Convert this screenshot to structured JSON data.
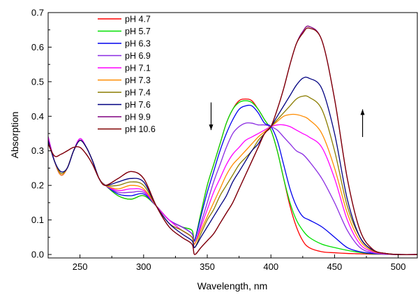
{
  "chart_data": {
    "type": "line",
    "title": "",
    "xlabel": "Wavelength, nm",
    "ylabel": "Absorption",
    "xlim": [
      225,
      515
    ],
    "ylim": [
      -0.01,
      0.7
    ],
    "xticks": [
      250,
      300,
      350,
      400,
      450,
      500
    ],
    "yticks": [
      0.0,
      0.1,
      0.2,
      0.3,
      0.4,
      0.5,
      0.6,
      0.7
    ],
    "grid": false,
    "legend_position": "top-left",
    "annotations": [
      {
        "type": "arrow",
        "direction": "down",
        "x": 353,
        "y_from": 0.44,
        "y_to": 0.36
      },
      {
        "type": "arrow",
        "direction": "up",
        "x": 472,
        "y_from": 0.34,
        "y_to": 0.42
      }
    ],
    "series": [
      {
        "name": "pH 4.7",
        "color": "#ff0000",
        "x": [
          225,
          230,
          235,
          240,
          245,
          250,
          255,
          260,
          265,
          270,
          280,
          290,
          300,
          310,
          320,
          330,
          338,
          340,
          345,
          350,
          355,
          360,
          365,
          370,
          375,
          380,
          385,
          390,
          395,
          400,
          405,
          410,
          415,
          420,
          425,
          430,
          440,
          450,
          460,
          470,
          480,
          490,
          500,
          515
        ],
        "y": [
          0.34,
          0.27,
          0.23,
          0.25,
          0.3,
          0.33,
          0.31,
          0.27,
          0.22,
          0.2,
          0.17,
          0.16,
          0.17,
          0.14,
          0.1,
          0.08,
          0.07,
          0.04,
          0.12,
          0.2,
          0.26,
          0.32,
          0.38,
          0.42,
          0.445,
          0.45,
          0.445,
          0.42,
          0.39,
          0.36,
          0.3,
          0.22,
          0.14,
          0.08,
          0.04,
          0.02,
          0.008,
          0.005,
          0.003,
          0.002,
          0.001,
          0.001,
          0.0,
          0.0
        ]
      },
      {
        "name": "pH 5.7",
        "color": "#00e000",
        "x": [
          225,
          230,
          235,
          240,
          245,
          250,
          255,
          260,
          265,
          270,
          280,
          290,
          300,
          310,
          320,
          330,
          338,
          340,
          345,
          350,
          355,
          360,
          365,
          370,
          375,
          380,
          385,
          390,
          395,
          400,
          405,
          410,
          415,
          420,
          425,
          430,
          440,
          450,
          460,
          470,
          480,
          490,
          500,
          515
        ],
        "y": [
          0.34,
          0.27,
          0.23,
          0.25,
          0.3,
          0.33,
          0.31,
          0.27,
          0.22,
          0.2,
          0.17,
          0.16,
          0.17,
          0.14,
          0.1,
          0.08,
          0.07,
          0.04,
          0.12,
          0.2,
          0.26,
          0.32,
          0.38,
          0.42,
          0.44,
          0.445,
          0.44,
          0.42,
          0.39,
          0.36,
          0.3,
          0.22,
          0.15,
          0.1,
          0.07,
          0.05,
          0.03,
          0.02,
          0.012,
          0.006,
          0.002,
          0.001,
          0.0,
          0.0
        ]
      },
      {
        "name": "pH 6.3",
        "color": "#0000ee",
        "x": [
          225,
          230,
          235,
          240,
          245,
          250,
          255,
          260,
          265,
          270,
          280,
          290,
          300,
          310,
          320,
          330,
          338,
          340,
          345,
          350,
          355,
          360,
          365,
          370,
          375,
          380,
          385,
          390,
          395,
          400,
          405,
          410,
          415,
          420,
          425,
          430,
          440,
          450,
          460,
          470,
          480,
          490,
          500,
          515
        ],
        "y": [
          0.34,
          0.27,
          0.23,
          0.25,
          0.3,
          0.335,
          0.31,
          0.27,
          0.22,
          0.2,
          0.175,
          0.17,
          0.175,
          0.14,
          0.1,
          0.08,
          0.06,
          0.04,
          0.11,
          0.18,
          0.24,
          0.3,
          0.35,
          0.39,
          0.42,
          0.43,
          0.43,
          0.41,
          0.38,
          0.37,
          0.33,
          0.26,
          0.19,
          0.14,
          0.11,
          0.1,
          0.08,
          0.05,
          0.02,
          0.008,
          0.003,
          0.001,
          0.0,
          0.0
        ]
      },
      {
        "name": "pH 6.9",
        "color": "#8a2be2",
        "x": [
          225,
          230,
          235,
          240,
          245,
          250,
          255,
          260,
          265,
          270,
          280,
          290,
          300,
          310,
          320,
          330,
          338,
          340,
          345,
          350,
          355,
          360,
          365,
          370,
          375,
          380,
          385,
          390,
          395,
          400,
          405,
          410,
          415,
          420,
          425,
          430,
          440,
          450,
          460,
          470,
          480,
          490,
          500,
          515
        ],
        "y": [
          0.34,
          0.27,
          0.23,
          0.25,
          0.3,
          0.335,
          0.31,
          0.27,
          0.22,
          0.2,
          0.18,
          0.18,
          0.18,
          0.14,
          0.1,
          0.08,
          0.06,
          0.03,
          0.09,
          0.15,
          0.21,
          0.26,
          0.31,
          0.35,
          0.37,
          0.38,
          0.38,
          0.375,
          0.375,
          0.37,
          0.36,
          0.34,
          0.32,
          0.3,
          0.29,
          0.27,
          0.22,
          0.15,
          0.07,
          0.02,
          0.005,
          0.001,
          0.0,
          0.0
        ]
      },
      {
        "name": "pH 7.1",
        "color": "#ff00ff",
        "x": [
          225,
          230,
          235,
          240,
          245,
          250,
          255,
          260,
          265,
          270,
          280,
          290,
          300,
          310,
          320,
          330,
          338,
          340,
          345,
          350,
          355,
          360,
          365,
          370,
          375,
          380,
          385,
          390,
          395,
          400,
          405,
          410,
          415,
          420,
          425,
          430,
          440,
          450,
          460,
          470,
          480,
          490,
          500,
          515
        ],
        "y": [
          0.34,
          0.27,
          0.23,
          0.25,
          0.3,
          0.335,
          0.31,
          0.27,
          0.22,
          0.2,
          0.185,
          0.19,
          0.185,
          0.14,
          0.1,
          0.07,
          0.05,
          0.03,
          0.08,
          0.13,
          0.18,
          0.22,
          0.26,
          0.29,
          0.31,
          0.33,
          0.34,
          0.35,
          0.36,
          0.37,
          0.375,
          0.375,
          0.37,
          0.36,
          0.35,
          0.34,
          0.31,
          0.22,
          0.1,
          0.03,
          0.008,
          0.002,
          0.0,
          0.0
        ]
      },
      {
        "name": "pH 7.3",
        "color": "#ff8c00",
        "x": [
          225,
          230,
          235,
          240,
          245,
          250,
          255,
          260,
          265,
          270,
          280,
          290,
          300,
          310,
          320,
          330,
          338,
          340,
          345,
          350,
          355,
          360,
          365,
          370,
          375,
          380,
          385,
          390,
          395,
          400,
          405,
          410,
          415,
          420,
          425,
          430,
          440,
          450,
          460,
          470,
          480,
          490,
          500,
          515
        ],
        "y": [
          0.33,
          0.27,
          0.23,
          0.25,
          0.3,
          0.33,
          0.31,
          0.27,
          0.22,
          0.2,
          0.19,
          0.2,
          0.19,
          0.14,
          0.09,
          0.07,
          0.05,
          0.03,
          0.07,
          0.11,
          0.15,
          0.19,
          0.23,
          0.26,
          0.28,
          0.3,
          0.32,
          0.34,
          0.355,
          0.37,
          0.385,
          0.4,
          0.405,
          0.405,
          0.4,
          0.39,
          0.35,
          0.25,
          0.12,
          0.04,
          0.01,
          0.003,
          0.0,
          0.0
        ]
      },
      {
        "name": "pH 7.4",
        "color": "#8b7d00",
        "x": [
          225,
          230,
          235,
          240,
          245,
          250,
          255,
          260,
          265,
          270,
          280,
          290,
          300,
          310,
          320,
          330,
          338,
          340,
          345,
          350,
          355,
          360,
          365,
          370,
          375,
          380,
          385,
          390,
          395,
          400,
          405,
          410,
          415,
          420,
          425,
          430,
          440,
          450,
          460,
          470,
          480,
          490,
          500,
          515
        ],
        "y": [
          0.33,
          0.27,
          0.235,
          0.25,
          0.3,
          0.33,
          0.31,
          0.27,
          0.22,
          0.2,
          0.2,
          0.21,
          0.2,
          0.14,
          0.09,
          0.07,
          0.05,
          0.02,
          0.06,
          0.1,
          0.13,
          0.17,
          0.2,
          0.23,
          0.26,
          0.28,
          0.3,
          0.33,
          0.35,
          0.37,
          0.39,
          0.41,
          0.43,
          0.45,
          0.458,
          0.455,
          0.42,
          0.3,
          0.14,
          0.05,
          0.012,
          0.003,
          0.0,
          0.0
        ]
      },
      {
        "name": "pH 7.6",
        "color": "#000080",
        "x": [
          225,
          230,
          235,
          240,
          245,
          250,
          255,
          260,
          265,
          270,
          280,
          290,
          300,
          310,
          320,
          330,
          338,
          340,
          345,
          350,
          355,
          360,
          365,
          370,
          375,
          380,
          385,
          390,
          395,
          400,
          405,
          410,
          415,
          420,
          425,
          430,
          440,
          450,
          460,
          470,
          480,
          490,
          500,
          515
        ],
        "y": [
          0.33,
          0.27,
          0.24,
          0.25,
          0.3,
          0.33,
          0.31,
          0.27,
          0.22,
          0.2,
          0.21,
          0.22,
          0.21,
          0.14,
          0.09,
          0.06,
          0.04,
          0.02,
          0.05,
          0.08,
          0.11,
          0.14,
          0.17,
          0.21,
          0.24,
          0.27,
          0.3,
          0.32,
          0.35,
          0.37,
          0.4,
          0.43,
          0.46,
          0.49,
          0.51,
          0.51,
          0.48,
          0.35,
          0.16,
          0.05,
          0.013,
          0.003,
          0.0,
          0.0
        ]
      },
      {
        "name": "pH 9.9",
        "color": "#800080",
        "x": [
          225,
          230,
          235,
          240,
          245,
          250,
          255,
          260,
          265,
          270,
          280,
          290,
          300,
          310,
          320,
          330,
          338,
          340,
          345,
          350,
          355,
          360,
          365,
          370,
          375,
          380,
          385,
          390,
          395,
          400,
          405,
          410,
          415,
          420,
          425,
          430,
          440,
          450,
          460,
          470,
          480,
          490,
          500,
          515
        ],
        "y": [
          0.32,
          0.285,
          0.29,
          0.3,
          0.31,
          0.31,
          0.29,
          0.26,
          0.22,
          0.2,
          0.22,
          0.24,
          0.22,
          0.14,
          0.08,
          0.05,
          0.03,
          0.0,
          0.02,
          0.04,
          0.06,
          0.09,
          0.12,
          0.15,
          0.19,
          0.23,
          0.27,
          0.31,
          0.35,
          0.37,
          0.42,
          0.48,
          0.55,
          0.61,
          0.645,
          0.66,
          0.62,
          0.45,
          0.22,
          0.07,
          0.015,
          0.003,
          0.0,
          0.0
        ]
      },
      {
        "name": "pH 10.6",
        "color": "#800000",
        "x": [
          225,
          230,
          235,
          240,
          245,
          250,
          255,
          260,
          265,
          270,
          280,
          290,
          300,
          310,
          320,
          330,
          338,
          340,
          345,
          350,
          355,
          360,
          365,
          370,
          375,
          380,
          385,
          390,
          395,
          400,
          405,
          410,
          415,
          420,
          425,
          430,
          440,
          450,
          460,
          470,
          480,
          490,
          500,
          515
        ],
        "y": [
          0.32,
          0.285,
          0.29,
          0.3,
          0.31,
          0.31,
          0.29,
          0.26,
          0.22,
          0.2,
          0.22,
          0.24,
          0.22,
          0.14,
          0.08,
          0.05,
          0.03,
          0.0,
          0.02,
          0.04,
          0.06,
          0.09,
          0.12,
          0.15,
          0.19,
          0.23,
          0.27,
          0.31,
          0.35,
          0.37,
          0.42,
          0.48,
          0.55,
          0.61,
          0.64,
          0.655,
          0.62,
          0.45,
          0.22,
          0.07,
          0.015,
          0.003,
          0.0,
          0.0
        ]
      }
    ]
  }
}
